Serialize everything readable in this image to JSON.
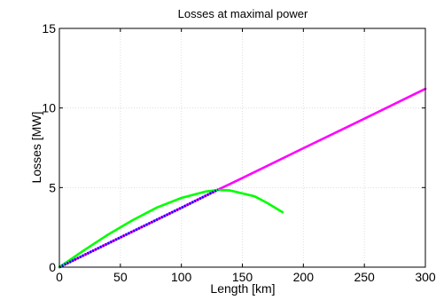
{
  "chart_data": {
    "type": "line",
    "title": "Losses at maximal power",
    "xlabel": "Length [km]",
    "ylabel": "Losses [MW]",
    "xlim": [
      0,
      300
    ],
    "ylim": [
      0,
      15
    ],
    "xticks": [
      0,
      50,
      100,
      150,
      200,
      250,
      300
    ],
    "yticks": [
      0,
      5,
      10,
      15
    ],
    "grid": true,
    "legend": "none",
    "series": [
      {
        "color": "#ff00ff",
        "style": "solid",
        "x": [
          0,
          50,
          100,
          130,
          150,
          200,
          250,
          300
        ],
        "y": [
          0,
          1.87,
          3.73,
          4.87,
          5.6,
          7.47,
          9.33,
          11.2
        ]
      },
      {
        "color": "#00ff00",
        "style": "solid",
        "x": [
          0,
          20,
          40,
          60,
          80,
          100,
          120,
          130,
          140,
          160,
          170,
          183
        ],
        "y": [
          0,
          1.05,
          2.05,
          2.95,
          3.75,
          4.35,
          4.75,
          4.85,
          4.82,
          4.45,
          4.05,
          3.45
        ]
      },
      {
        "color": "#0000ff",
        "style": "dotted",
        "x": [
          0,
          50,
          100,
          130
        ],
        "y": [
          0,
          1.87,
          3.73,
          4.87
        ]
      }
    ]
  }
}
